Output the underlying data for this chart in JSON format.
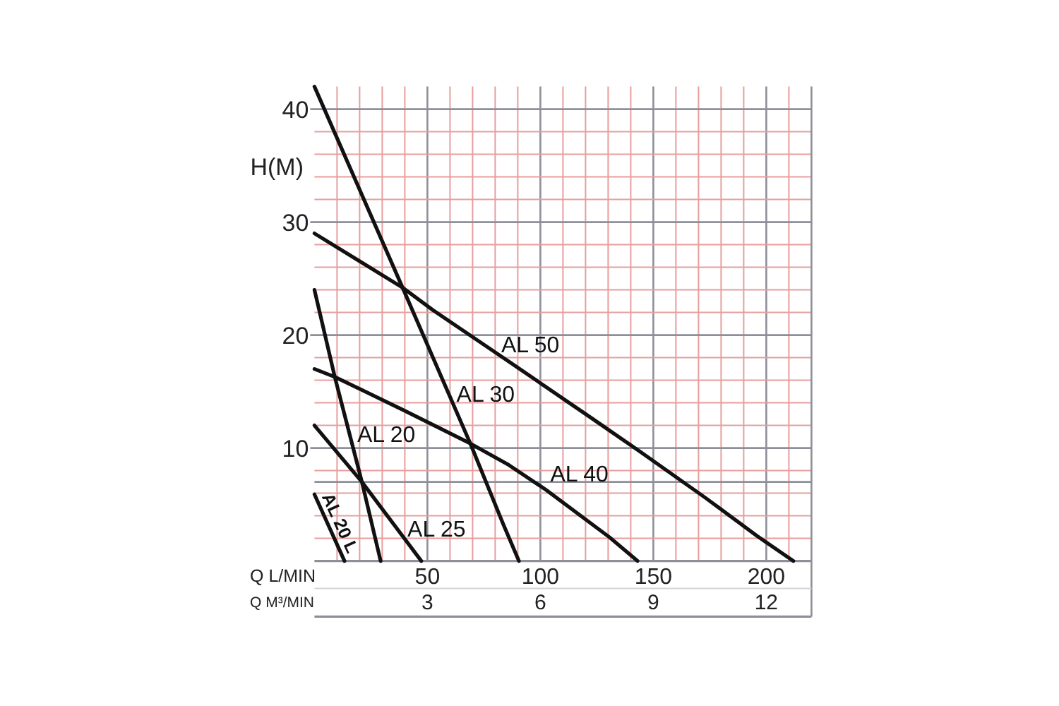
{
  "chart_data": {
    "type": "line",
    "xlabel": "Q L/MIN",
    "x2label": "Q M³/MIN",
    "ylabel": "H(M)",
    "xlim": [
      0,
      220
    ],
    "xticks": [
      {
        "value": 10,
        "label": null
      },
      {
        "value": 20,
        "label": null
      },
      {
        "value": 30,
        "label": null
      },
      {
        "value": 40,
        "label": null
      },
      50,
      {
        "value": 60,
        "label": null
      },
      {
        "value": 70,
        "label": null
      },
      {
        "value": 80,
        "label": null
      },
      {
        "value": 90,
        "label": null
      },
      100,
      {
        "value": 110,
        "label": null
      },
      {
        "value": 120,
        "label": null
      },
      {
        "value": 130,
        "label": null
      },
      {
        "value": 140,
        "label": null
      },
      150,
      {
        "value": 160,
        "label": null
      },
      {
        "value": 170,
        "label": null
      },
      {
        "value": 180,
        "label": null
      },
      {
        "value": 190,
        "label": null
      },
      200,
      {
        "value": 210,
        "label": null
      }
    ],
    "x2lim": [
      0,
      13.2
    ],
    "x2ticks": [
      3,
      6,
      9,
      12
    ],
    "ylim": [
      0,
      42
    ],
    "yticks": [
      {
        "value": 2,
        "label": null
      },
      {
        "value": 4,
        "label": null
      },
      {
        "value": 6,
        "label": null
      },
      {
        "value": 8,
        "label": null
      },
      10,
      {
        "value": 12,
        "label": null
      },
      {
        "value": 14,
        "label": null
      },
      {
        "value": 16,
        "label": null
      },
      {
        "value": 18,
        "label": null
      },
      20,
      {
        "value": 22,
        "label": null
      },
      {
        "value": 24,
        "label": null
      },
      {
        "value": 26,
        "label": null
      },
      {
        "value": 28,
        "label": null
      },
      30,
      {
        "value": 32,
        "label": null
      },
      {
        "value": 34,
        "label": null
      },
      {
        "value": 36,
        "label": null
      },
      {
        "value": 38,
        "label": null
      },
      40
    ],
    "grid": true,
    "ref_lines": [
      {
        "axis": "y",
        "value": 7,
        "color": "#8f8f9a"
      }
    ],
    "series": [
      {
        "name": "AL 50",
        "color": "#111111",
        "x": [
          0,
          39,
          52.5,
          85,
          123,
          144,
          173,
          196,
          212
        ],
        "values": [
          29,
          24.2,
          22.2,
          17.8,
          12.6,
          9.7,
          5.6,
          2.2,
          0
        ]
      },
      {
        "name": "AL 30",
        "color": "#111111",
        "x": [
          0,
          39,
          69,
          83.7,
          90.5
        ],
        "values": [
          42,
          24.2,
          10.4,
          3.2,
          0
        ]
      },
      {
        "name": "AL 40",
        "color": "#111111",
        "x": [
          0,
          9,
          40,
          69,
          86,
          102.5,
          130.6,
          143
        ],
        "values": [
          17,
          16.3,
          13.3,
          10.4,
          8.5,
          6.3,
          2.1,
          0
        ]
      },
      {
        "name": "AL 20",
        "color": "#111111",
        "x": [
          0,
          9,
          21,
          29.3
        ],
        "values": [
          24,
          16.3,
          7.0,
          0
        ]
      },
      {
        "name": "AL 25",
        "color": "#111111",
        "x": [
          0,
          21,
          47.3
        ],
        "values": [
          12,
          7.0,
          0
        ]
      },
      {
        "name": "AL 20 L",
        "color": "#111111",
        "x": [
          0,
          13.3
        ],
        "values": [
          5.9,
          0
        ]
      }
    ]
  }
}
